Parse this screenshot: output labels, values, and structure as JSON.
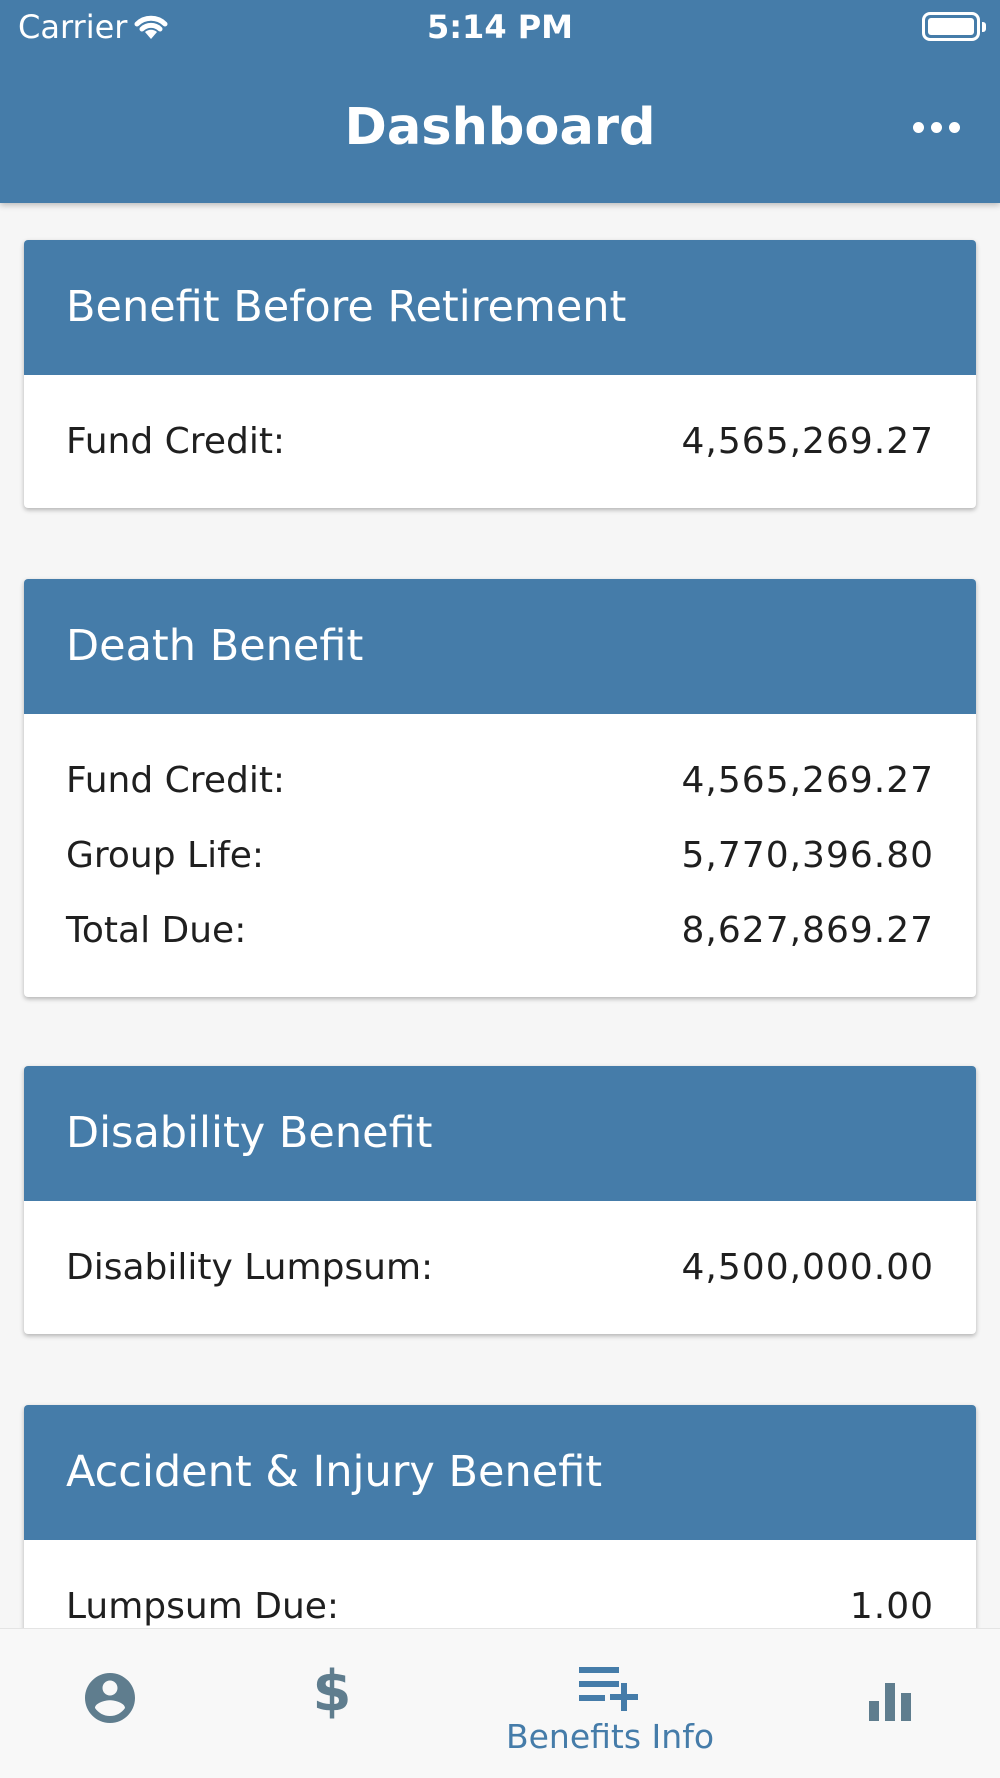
{
  "status_bar": {
    "carrier": "Carrier",
    "time": "5:14 PM"
  },
  "header": {
    "title": "Dashboard",
    "menu_icon": "more-horizontal-icon"
  },
  "cards": [
    {
      "title": "Benefit Before Retirement",
      "rows": [
        {
          "label": "Fund Credit:",
          "value": "4,565,269.27"
        }
      ]
    },
    {
      "title": "Death Benefit",
      "rows": [
        {
          "label": "Fund Credit:",
          "value": "4,565,269.27"
        },
        {
          "label": "Group Life:",
          "value": "5,770,396.80"
        },
        {
          "label": "Total Due:",
          "value": "8,627,869.27"
        }
      ]
    },
    {
      "title": "Disability Benefit",
      "rows": [
        {
          "label": "Disability Lumpsum:",
          "value": "4,500,000.00"
        }
      ]
    },
    {
      "title": "Accident & Injury Benefit",
      "rows": [
        {
          "label": "Lumpsum Due:",
          "value": "1.00"
        }
      ]
    }
  ],
  "bottom_nav": {
    "items": [
      {
        "icon": "account-circle-icon",
        "label": ""
      },
      {
        "icon": "dollar-icon",
        "label": ""
      },
      {
        "icon": "playlist-add-icon",
        "label": "Benefits Info",
        "active": true
      },
      {
        "icon": "bar-chart-icon",
        "label": ""
      }
    ]
  },
  "colors": {
    "primary": "#457ca9",
    "inactive_icon": "#5f7d8e",
    "background": "#f6f6f6"
  }
}
